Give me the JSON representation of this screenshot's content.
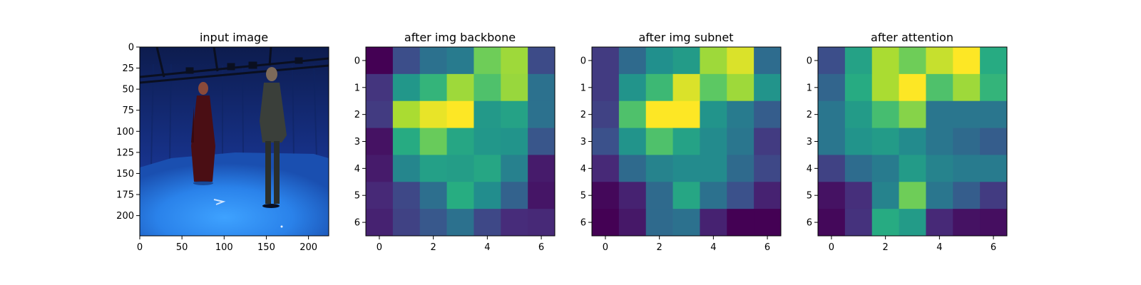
{
  "chart_data": [
    {
      "type": "image",
      "title": "input image",
      "xticks": [
        0,
        50,
        100,
        150,
        200
      ],
      "yticks": [
        0,
        25,
        50,
        75,
        100,
        125,
        150,
        175,
        200
      ],
      "xlim": [
        0,
        224
      ],
      "ylim": [
        224,
        0
      ]
    },
    {
      "type": "heatmap",
      "title": "after img backbone",
      "xticks": [
        0,
        2,
        4,
        6
      ],
      "yticks": [
        0,
        1,
        2,
        3,
        4,
        5,
        6
      ],
      "xlim": [
        -0.5,
        6.5
      ],
      "ylim": [
        6.5,
        -0.5
      ],
      "colormap": "viridis",
      "values": [
        [
          0.0,
          0.24,
          0.38,
          0.42,
          0.78,
          0.86,
          0.23
        ],
        [
          0.16,
          0.53,
          0.66,
          0.86,
          0.72,
          0.85,
          0.38
        ],
        [
          0.18,
          0.88,
          0.97,
          1.0,
          0.54,
          0.58,
          0.38
        ],
        [
          0.05,
          0.62,
          0.77,
          0.6,
          0.53,
          0.52,
          0.27
        ],
        [
          0.08,
          0.46,
          0.57,
          0.56,
          0.6,
          0.44,
          0.08
        ],
        [
          0.12,
          0.22,
          0.37,
          0.63,
          0.49,
          0.32,
          0.06
        ],
        [
          0.1,
          0.2,
          0.28,
          0.38,
          0.22,
          0.13,
          0.12
        ]
      ]
    },
    {
      "type": "heatmap",
      "title": "after img subnet",
      "xticks": [
        0,
        2,
        4,
        6
      ],
      "yticks": [
        0,
        1,
        2,
        3,
        4,
        5,
        6
      ],
      "xlim": [
        -0.5,
        6.5
      ],
      "ylim": [
        6.5,
        -0.5
      ],
      "colormap": "viridis",
      "values": [
        [
          0.18,
          0.35,
          0.5,
          0.55,
          0.86,
          0.95,
          0.36
        ],
        [
          0.18,
          0.52,
          0.68,
          0.95,
          0.75,
          0.86,
          0.52
        ],
        [
          0.2,
          0.72,
          1.0,
          1.0,
          0.52,
          0.42,
          0.3
        ],
        [
          0.25,
          0.52,
          0.72,
          0.58,
          0.48,
          0.4,
          0.18
        ],
        [
          0.12,
          0.35,
          0.45,
          0.48,
          0.48,
          0.35,
          0.22
        ],
        [
          0.02,
          0.1,
          0.35,
          0.6,
          0.38,
          0.25,
          0.1
        ],
        [
          0.0,
          0.07,
          0.35,
          0.38,
          0.1,
          0.0,
          0.0
        ]
      ]
    },
    {
      "type": "heatmap",
      "title": "after attention",
      "xticks": [
        0,
        2,
        4,
        6
      ],
      "yticks": [
        0,
        1,
        2,
        3,
        4,
        5,
        6
      ],
      "xlim": [
        -0.5,
        6.5
      ],
      "ylim": [
        6.5,
        -0.5
      ],
      "colormap": "viridis",
      "values": [
        [
          0.24,
          0.58,
          0.88,
          0.78,
          0.92,
          1.0,
          0.62
        ],
        [
          0.33,
          0.62,
          0.88,
          1.0,
          0.72,
          0.86,
          0.66
        ],
        [
          0.4,
          0.55,
          0.7,
          0.82,
          0.4,
          0.4,
          0.4
        ],
        [
          0.4,
          0.52,
          0.55,
          0.48,
          0.4,
          0.35,
          0.3
        ],
        [
          0.2,
          0.36,
          0.42,
          0.55,
          0.45,
          0.42,
          0.42
        ],
        [
          0.05,
          0.14,
          0.45,
          0.78,
          0.4,
          0.3,
          0.18
        ],
        [
          0.02,
          0.15,
          0.62,
          0.55,
          0.12,
          0.05,
          0.04
        ]
      ]
    }
  ]
}
